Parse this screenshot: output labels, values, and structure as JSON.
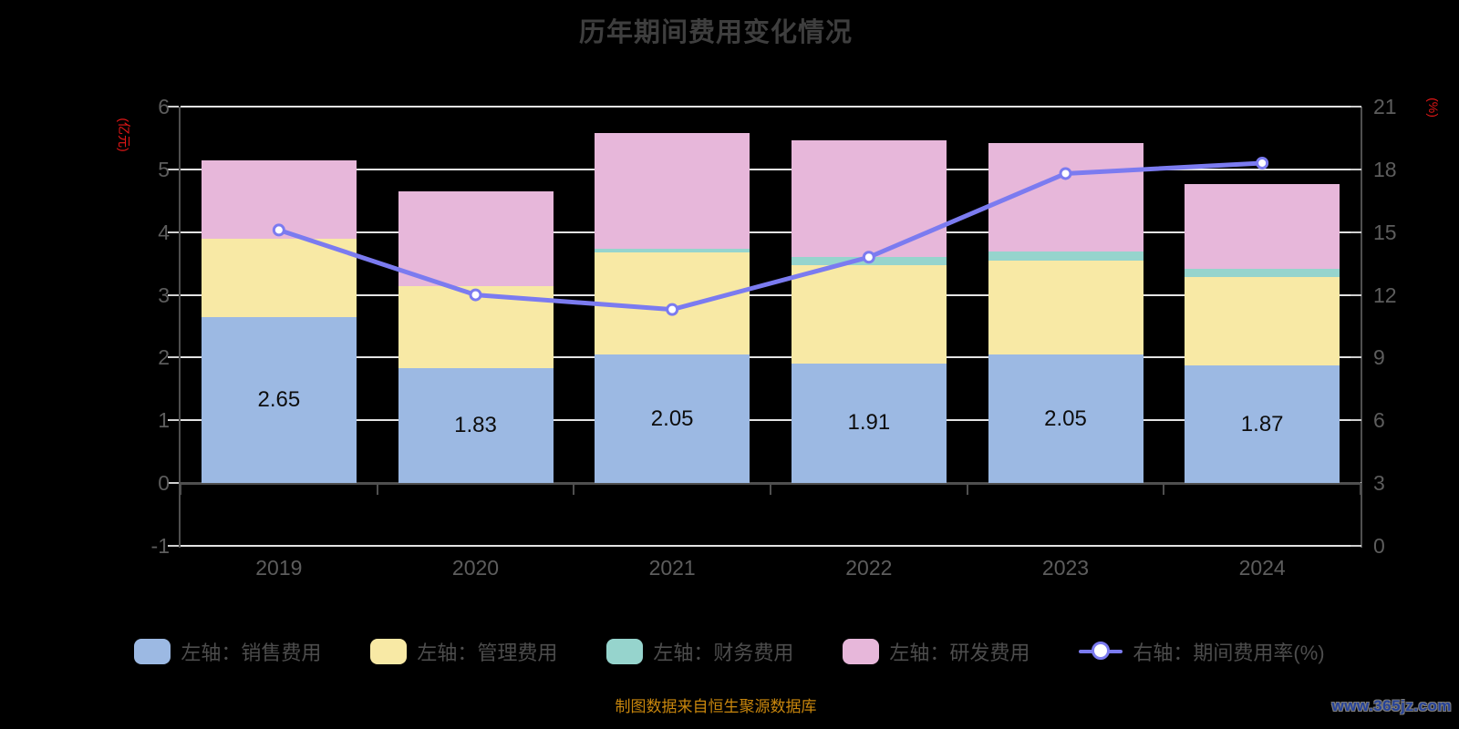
{
  "title": "历年期间费用变化情况",
  "footer_note": "制图数据来自恒生聚源数据库",
  "watermark": "www.365jz.com",
  "colors": {
    "background": "#000000",
    "title_text": "#3e3e3e",
    "axis_text": "#5d5d5d",
    "legend_text": "#4d4d4d",
    "gridline": "#e3e3e3",
    "axis_line": "#4f4f4f",
    "axis_name_red": "#e51717",
    "bar_label": "#0d0d0d",
    "footer_text": "#c8860d",
    "watermark_text": "#25429a",
    "series_sales": "#9cb9e3",
    "series_admin": "#f8e9a5",
    "series_finance": "#96d4cd",
    "series_rnd": "#e7b7da",
    "series_rate_line": "#7b7bf0"
  },
  "chart_data": {
    "type": "stacked-bar+line",
    "title": "历年期间费用变化情况",
    "categories": [
      "2019",
      "2020",
      "2021",
      "2022",
      "2023",
      "2024"
    ],
    "left_axis_name": "(亿元)",
    "right_axis_name": "(%)",
    "left_ylim": [
      -1,
      6
    ],
    "right_ylim": [
      0,
      21
    ],
    "left_ticks": [
      -1,
      0,
      1,
      2,
      3,
      4,
      5,
      6
    ],
    "right_ticks": [
      0,
      3,
      6,
      9,
      12,
      15,
      18,
      21
    ],
    "grid": "horizontal",
    "legend_position": "bottom",
    "series": [
      {
        "name": "左轴：销售费用",
        "key": "sales",
        "type": "bar",
        "color": "#9cb9e3",
        "show_labels": true,
        "values": [
          2.65,
          1.83,
          2.05,
          1.91,
          2.05,
          1.87
        ]
      },
      {
        "name": "左轴：管理费用",
        "key": "admin",
        "type": "bar",
        "color": "#f8e9a5",
        "values": [
          1.25,
          1.31,
          1.62,
          1.57,
          1.5,
          1.41
        ]
      },
      {
        "name": "左轴：财务费用",
        "key": "finance",
        "type": "bar",
        "color": "#96d4cd",
        "values": [
          0.0,
          0.0,
          0.06,
          0.13,
          0.14,
          0.13
        ]
      },
      {
        "name": "左轴：研发费用",
        "key": "rnd",
        "type": "bar",
        "color": "#e7b7da",
        "values": [
          1.24,
          1.51,
          1.85,
          1.85,
          1.73,
          1.36
        ]
      },
      {
        "name": "右轴：期间费用率(%)",
        "key": "rate",
        "type": "line",
        "axis": "right",
        "color": "#7b7bf0",
        "values": [
          15.1,
          12.0,
          11.3,
          13.8,
          17.8,
          18.3
        ]
      }
    ]
  }
}
